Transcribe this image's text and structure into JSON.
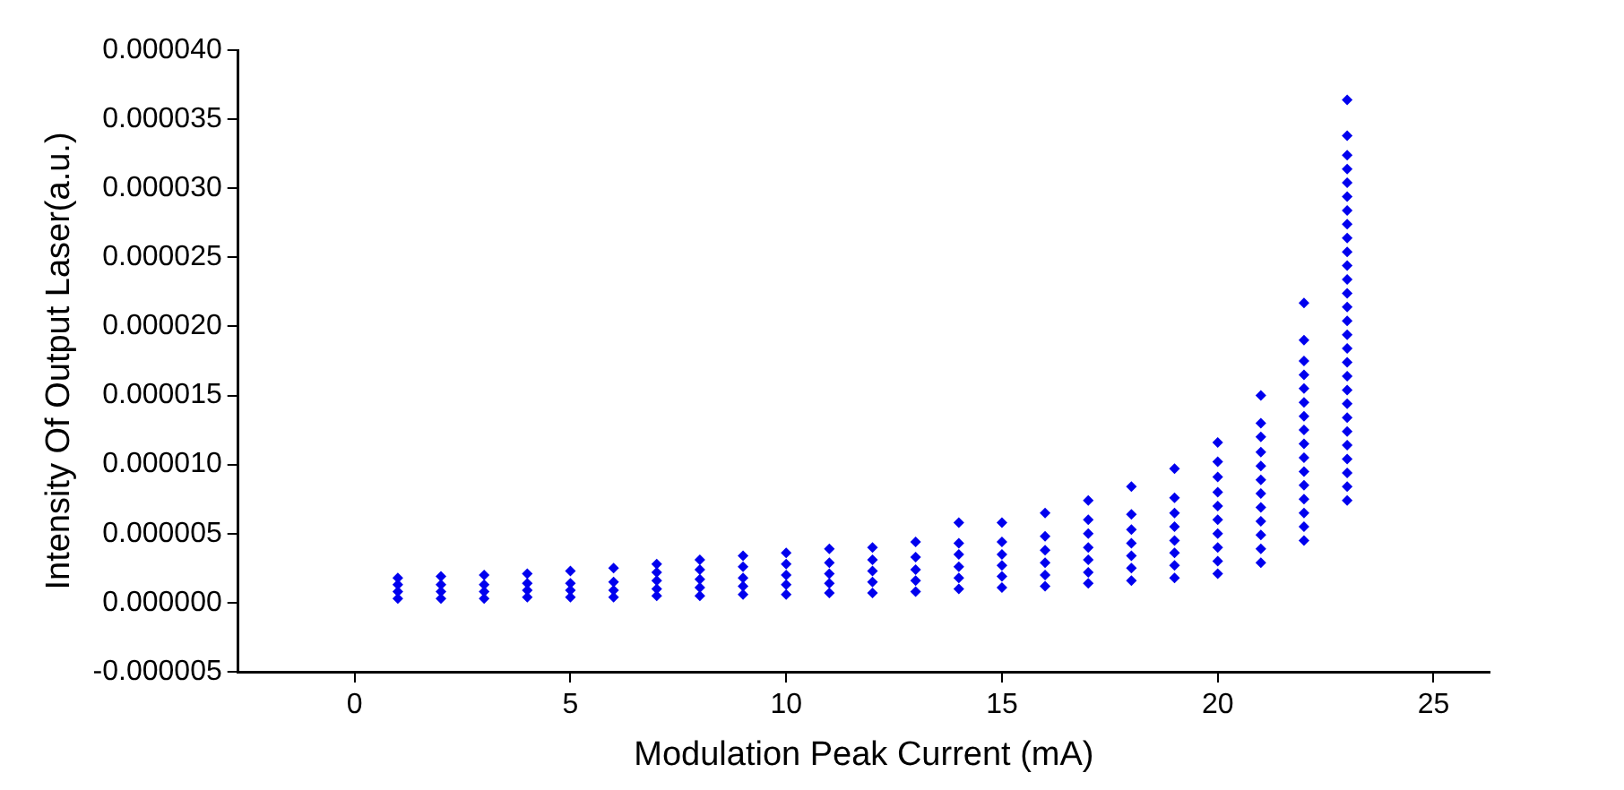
{
  "chart_data": {
    "type": "scatter",
    "xlabel": "Modulation Peak Current (mA)",
    "ylabel": "Intensity Of Output Laser(a.u.)",
    "xlim": [
      -2.7,
      26.3
    ],
    "xticks": [
      0,
      5,
      10,
      15,
      20,
      25
    ],
    "ylim": [
      -5e-06,
      4e-05
    ],
    "yticks": [
      {
        "value": -5e-06,
        "label": "-0.000005"
      },
      {
        "value": 0,
        "label": "0.000000"
      },
      {
        "value": 5e-06,
        "label": "0.000005"
      },
      {
        "value": 1e-05,
        "label": "0.000010"
      },
      {
        "value": 1.5e-05,
        "label": "0.000015"
      },
      {
        "value": 2e-05,
        "label": "0.000020"
      },
      {
        "value": 2.5e-05,
        "label": "0.000025"
      },
      {
        "value": 3e-05,
        "label": "0.000030"
      },
      {
        "value": 3.5e-05,
        "label": "0.000035"
      },
      {
        "value": 4e-05,
        "label": "0.000040"
      }
    ],
    "grid": false,
    "legend": false,
    "marker": "diamond",
    "series": [
      {
        "color": "#0000ee",
        "x": [
          1,
          1,
          1,
          1,
          2,
          2,
          2,
          2,
          3,
          3,
          3,
          3,
          4,
          4,
          4,
          4,
          5,
          5,
          5,
          5,
          6,
          6,
          6,
          6,
          7,
          7,
          7,
          7,
          7,
          8,
          8,
          8,
          8,
          8,
          9,
          9,
          9,
          9,
          9,
          10,
          10,
          10,
          10,
          10,
          11,
          11,
          11,
          11,
          11,
          12,
          12,
          12,
          12,
          12,
          13,
          13,
          13,
          13,
          13,
          14,
          14,
          14,
          14,
          14,
          14,
          15,
          15,
          15,
          15,
          15,
          15,
          16,
          16,
          16,
          16,
          16,
          16,
          17,
          17,
          17,
          17,
          17,
          17,
          17,
          18,
          18,
          18,
          18,
          18,
          18,
          18,
          19,
          19,
          19,
          19,
          19,
          19,
          19,
          19,
          20,
          20,
          20,
          20,
          20,
          20,
          20,
          20,
          20,
          20,
          21,
          21,
          21,
          21,
          21,
          21,
          21,
          21,
          21,
          21,
          21,
          21,
          22,
          22,
          22,
          22,
          22,
          22,
          22,
          22,
          22,
          22,
          22,
          22,
          22,
          22,
          22,
          22,
          23,
          23,
          23,
          23,
          23,
          23,
          23,
          23,
          23,
          23,
          23,
          23,
          23,
          23,
          23,
          23,
          23,
          23,
          23,
          23,
          23,
          23,
          23,
          23,
          23,
          23,
          23,
          23
        ],
        "values": [
          3e-07,
          8e-07,
          1.3e-06,
          1.8e-06,
          3e-07,
          8e-07,
          1.3e-06,
          1.9e-06,
          3e-07,
          8e-07,
          1.3e-06,
          2e-06,
          4e-07,
          9e-07,
          1.4e-06,
          2.1e-06,
          4e-07,
          9e-07,
          1.4e-06,
          2.3e-06,
          4e-07,
          9e-07,
          1.5e-06,
          2.5e-06,
          5e-07,
          1e-06,
          1.6e-06,
          2.2e-06,
          2.8e-06,
          5e-07,
          1.1e-06,
          1.7e-06,
          2.4e-06,
          3.1e-06,
          6e-07,
          1.2e-06,
          1.8e-06,
          2.6e-06,
          3.4e-06,
          6e-07,
          1.3e-06,
          2e-06,
          2.8e-06,
          3.6e-06,
          7e-07,
          1.4e-06,
          2.1e-06,
          2.9e-06,
          3.9e-06,
          7e-07,
          1.5e-06,
          2.3e-06,
          3.1e-06,
          4e-06,
          8e-07,
          1.6e-06,
          2.4e-06,
          3.3e-06,
          4.4e-06,
          1e-06,
          1.8e-06,
          2.6e-06,
          3.5e-06,
          4.3e-06,
          5.8e-06,
          1.1e-06,
          1.9e-06,
          2.7e-06,
          3.5e-06,
          4.4e-06,
          5.8e-06,
          1.2e-06,
          2e-06,
          2.9e-06,
          3.8e-06,
          4.8e-06,
          6.5e-06,
          1.4e-06,
          2.2e-06,
          3.1e-06,
          4e-06,
          5e-06,
          6e-06,
          7.4e-06,
          1.6e-06,
          2.5e-06,
          3.4e-06,
          4.3e-06,
          5.3e-06,
          6.4e-06,
          8.4e-06,
          1.8e-06,
          2.7e-06,
          3.6e-06,
          4.5e-06,
          5.5e-06,
          6.5e-06,
          7.6e-06,
          9.7e-06,
          2.1e-06,
          3e-06,
          4e-06,
          5e-06,
          6e-06,
          7e-06,
          8e-06,
          9.1e-06,
          1.02e-05,
          1.16e-05,
          2.9e-06,
          3.9e-06,
          4.9e-06,
          5.9e-06,
          6.9e-06,
          7.9e-06,
          8.9e-06,
          9.9e-06,
          1.09e-05,
          1.2e-05,
          1.3e-05,
          1.5e-05,
          4.5e-06,
          5.5e-06,
          6.5e-06,
          7.5e-06,
          8.5e-06,
          9.5e-06,
          1.05e-05,
          1.15e-05,
          1.25e-05,
          1.35e-05,
          1.45e-05,
          1.55e-05,
          1.65e-05,
          1.75e-05,
          1.9e-05,
          2.17e-05,
          7.4e-06,
          8.4e-06,
          9.4e-06,
          1.04e-05,
          1.14e-05,
          1.24e-05,
          1.34e-05,
          1.44e-05,
          1.54e-05,
          1.64e-05,
          1.74e-05,
          1.84e-05,
          1.94e-05,
          2.04e-05,
          2.14e-05,
          2.24e-05,
          2.34e-05,
          2.44e-05,
          2.54e-05,
          2.64e-05,
          2.74e-05,
          2.84e-05,
          2.94e-05,
          3.04e-05,
          3.14e-05,
          3.24e-05,
          3.38e-05,
          3.64e-05
        ]
      }
    ]
  }
}
